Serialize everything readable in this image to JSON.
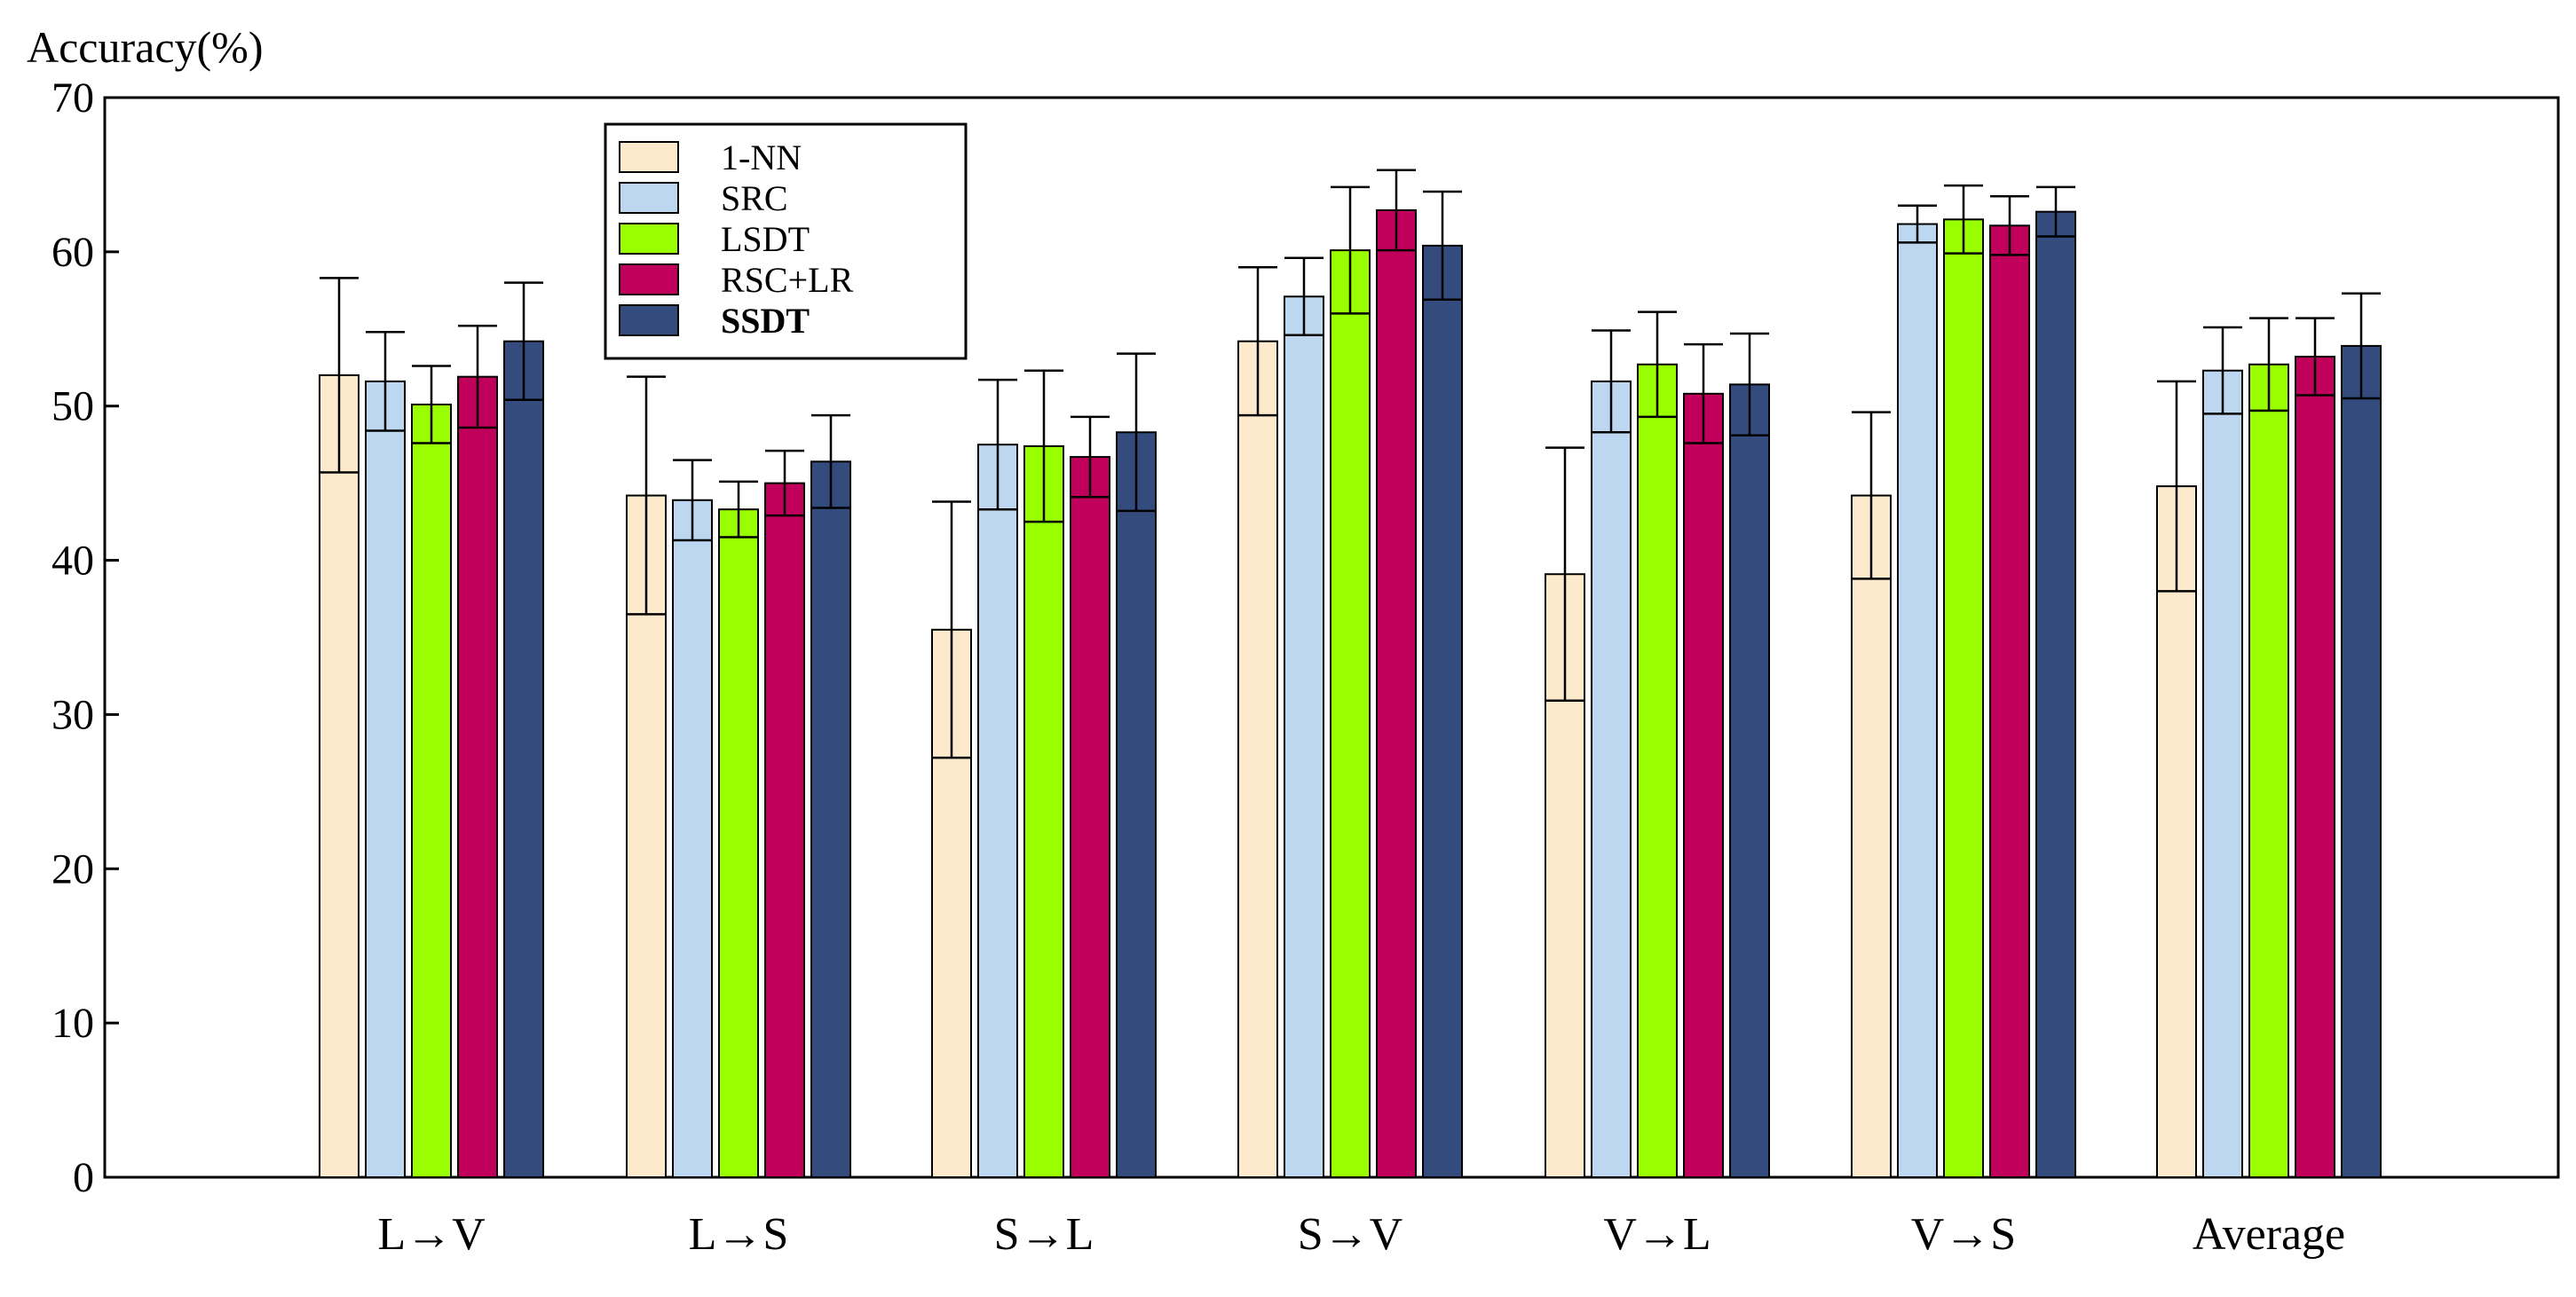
{
  "chart_data": {
    "type": "bar",
    "title": "",
    "ylabel": "Accuracy(%)",
    "xlabel": "",
    "ylim": [
      0,
      70
    ],
    "yticks": [
      0,
      10,
      20,
      30,
      40,
      50,
      60,
      70
    ],
    "grid": false,
    "legend_position": "top-left",
    "categories": [
      "L→V",
      "L→S",
      "S→L",
      "S→V",
      "V→L",
      "V→S",
      "Average"
    ],
    "series": [
      {
        "name": "1-NN",
        "color": "#FDE9CC",
        "bold": false,
        "values": [
          52.0,
          44.2,
          35.5,
          54.2,
          39.1,
          44.2,
          44.8
        ],
        "errors": [
          6.3,
          7.7,
          8.3,
          4.8,
          8.2,
          5.4,
          6.8
        ]
      },
      {
        "name": "SRC",
        "color": "#BDD7F1",
        "bold": false,
        "values": [
          51.6,
          43.9,
          47.5,
          57.1,
          51.6,
          61.8,
          52.3
        ],
        "errors": [
          3.2,
          2.6,
          4.2,
          2.5,
          3.3,
          1.2,
          2.8
        ]
      },
      {
        "name": "LSDT",
        "color": "#99FF00",
        "bold": false,
        "values": [
          50.1,
          43.3,
          47.4,
          60.1,
          52.7,
          62.1,
          52.7
        ],
        "errors": [
          2.5,
          1.8,
          4.9,
          4.1,
          3.4,
          2.2,
          3.0
        ]
      },
      {
        "name": "RSC+LR",
        "color": "#C0005A",
        "bold": false,
        "values": [
          51.9,
          45.0,
          46.7,
          62.7,
          50.8,
          61.7,
          53.2
        ],
        "errors": [
          3.3,
          2.1,
          2.6,
          2.6,
          3.2,
          1.9,
          2.5
        ]
      },
      {
        "name": "SSDT",
        "color": "#334B7D",
        "bold": true,
        "values": [
          54.2,
          46.4,
          48.3,
          60.4,
          51.4,
          62.6,
          53.9
        ],
        "errors": [
          3.8,
          3.0,
          5.1,
          3.5,
          3.3,
          1.6,
          3.4
        ]
      }
    ]
  }
}
